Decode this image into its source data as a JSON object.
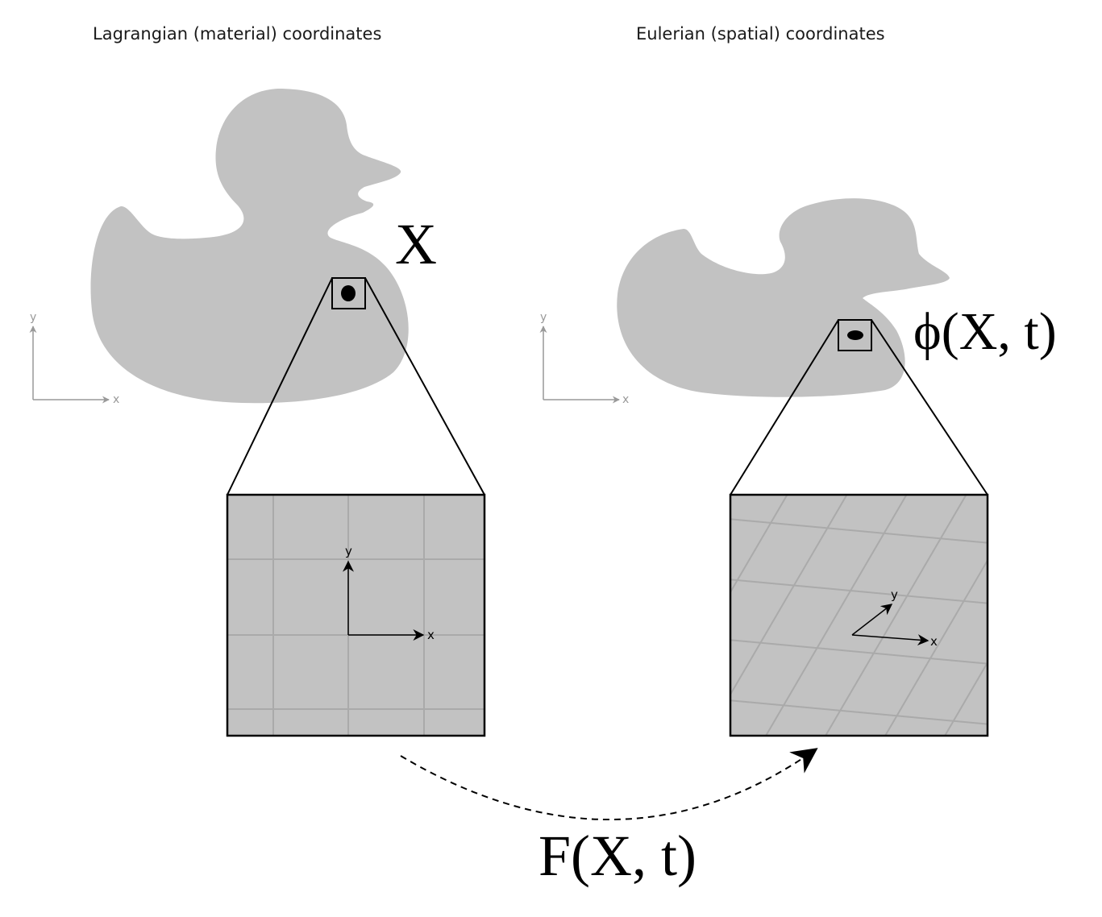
{
  "left_panel": {
    "title": "Lagrangian (material) coordinates",
    "point_label": "X",
    "axes": {
      "x_label": "x",
      "y_label": "y"
    },
    "zoom_axes": {
      "x_label": "x",
      "y_label": "y"
    }
  },
  "right_panel": {
    "title": "Eulerian (spatial) coordinates",
    "point_label": "ϕ(X, t)",
    "axes": {
      "x_label": "x",
      "y_label": "y"
    },
    "zoom_axes": {
      "x_label": "x",
      "y_label": "y"
    }
  },
  "mapping_label": "F(X, t)",
  "colors": {
    "duck_fill": "#c2c2c2",
    "axes_grey": "#999999",
    "grid_line": "#aaaaaa",
    "ink": "#000000"
  }
}
